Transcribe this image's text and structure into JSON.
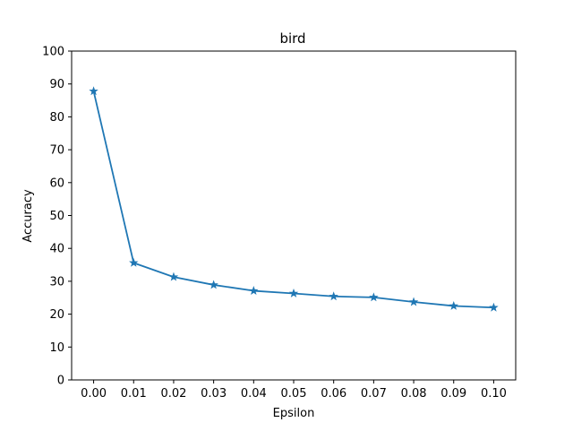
{
  "chart_data": {
    "type": "line",
    "title": "bird",
    "xlabel": "Epsilon",
    "ylabel": "Accuracy",
    "xlim": [
      -0.0055,
      0.1055
    ],
    "ylim": [
      0,
      100
    ],
    "xticks": [
      "0.00",
      "0.01",
      "0.02",
      "0.03",
      "0.04",
      "0.05",
      "0.06",
      "0.07",
      "0.08",
      "0.09",
      "0.10"
    ],
    "yticks": [
      "0",
      "10",
      "20",
      "30",
      "40",
      "50",
      "60",
      "70",
      "80",
      "90",
      "100"
    ],
    "grid": false,
    "series": [
      {
        "marker": "star",
        "color": "#1f77b4",
        "x": [
          0.0,
          0.01,
          0.02,
          0.03,
          0.04,
          0.05,
          0.06,
          0.07,
          0.08,
          0.09,
          0.1
        ],
        "y": [
          87.8,
          35.6,
          31.3,
          28.9,
          27.1,
          26.3,
          25.4,
          25.1,
          23.7,
          22.5,
          22.0
        ]
      }
    ]
  }
}
